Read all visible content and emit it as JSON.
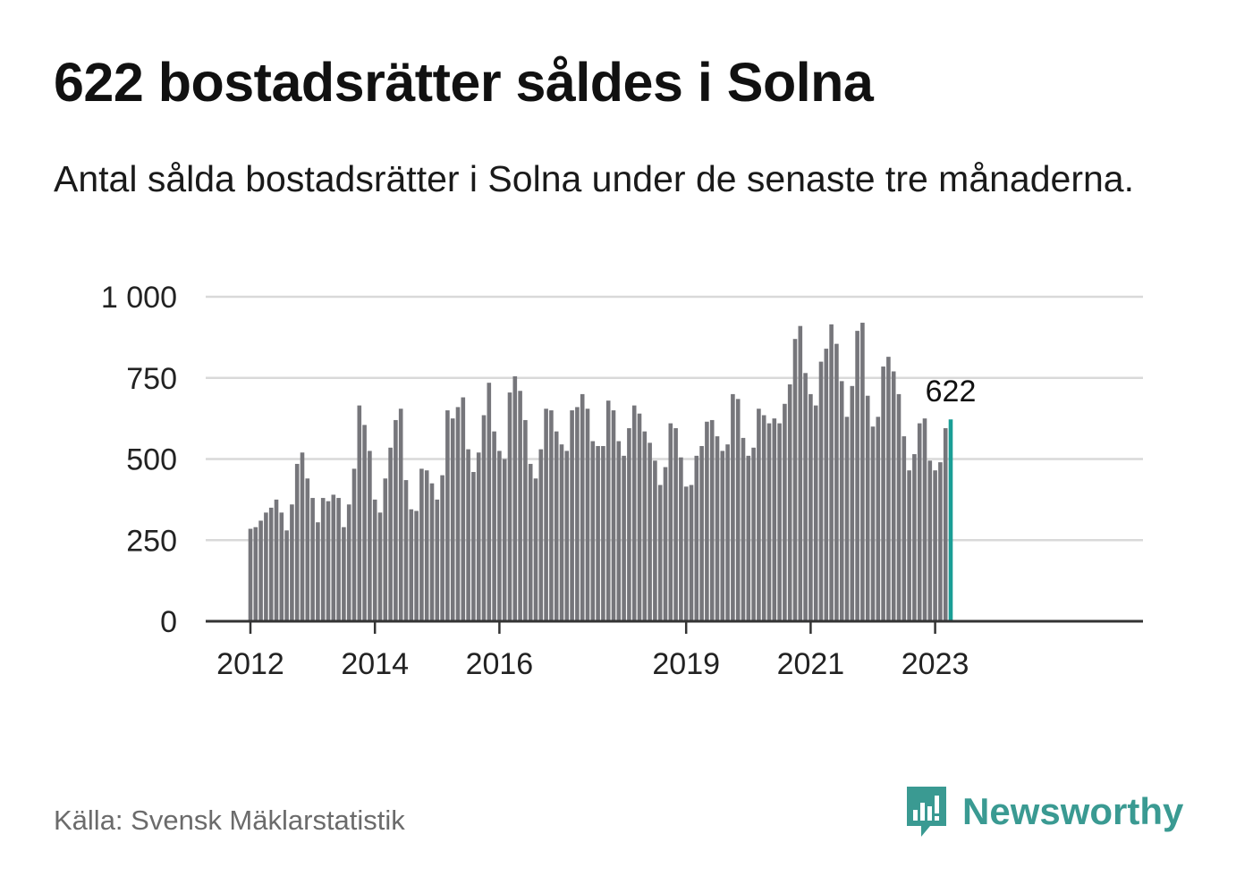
{
  "header": {
    "title": "622 bostadsrätter såldes i Solna",
    "subtitle": "Antal sålda bostadsrätter i Solna under de senaste tre månaderna."
  },
  "footer": {
    "source": "Källa: Svensk Mäklarstatistik",
    "brand": "Newsworthy",
    "brand_icon": "newsworthy-logo-icon"
  },
  "colors": {
    "bar": "#76767b",
    "highlight": "#1a9e96",
    "grid": "#d9d9d9",
    "axis": "#333333",
    "brand": "#3a9a92"
  },
  "chart_data": {
    "type": "bar",
    "title": "622 bostadsrätter såldes i Solna",
    "xlabel": "",
    "ylabel": "",
    "ylim": [
      0,
      1000
    ],
    "yticks": [
      0,
      250,
      500,
      750,
      1000
    ],
    "ytick_labels": [
      "0",
      "250",
      "500",
      "750",
      "1 000"
    ],
    "xticks": [
      {
        "label": "2012",
        "index": 0
      },
      {
        "label": "2014",
        "index": 24
      },
      {
        "label": "2016",
        "index": 48
      },
      {
        "label": "2019",
        "index": 84
      },
      {
        "label": "2021",
        "index": 108
      },
      {
        "label": "2023",
        "index": 132
      }
    ],
    "highlight_index": 135,
    "highlight_label": "622",
    "values": [
      285,
      290,
      310,
      335,
      350,
      375,
      335,
      280,
      360,
      485,
      520,
      440,
      380,
      305,
      380,
      370,
      390,
      380,
      290,
      360,
      470,
      665,
      605,
      525,
      375,
      335,
      440,
      535,
      620,
      655,
      435,
      345,
      340,
      470,
      465,
      425,
      375,
      450,
      650,
      625,
      660,
      690,
      530,
      460,
      520,
      635,
      735,
      585,
      525,
      500,
      705,
      755,
      710,
      620,
      485,
      440,
      530,
      655,
      650,
      585,
      545,
      525,
      650,
      660,
      700,
      655,
      555,
      540,
      540,
      680,
      650,
      555,
      510,
      595,
      665,
      640,
      585,
      550,
      495,
      420,
      475,
      610,
      595,
      505,
      415,
      420,
      510,
      540,
      615,
      620,
      570,
      525,
      545,
      700,
      685,
      565,
      510,
      535,
      655,
      635,
      610,
      625,
      610,
      670,
      730,
      870,
      910,
      765,
      700,
      665,
      800,
      840,
      915,
      855,
      740,
      630,
      725,
      895,
      920,
      695,
      600,
      630,
      785,
      815,
      770,
      700,
      570,
      465,
      515,
      610,
      625,
      495,
      465,
      490,
      595,
      622
    ]
  }
}
